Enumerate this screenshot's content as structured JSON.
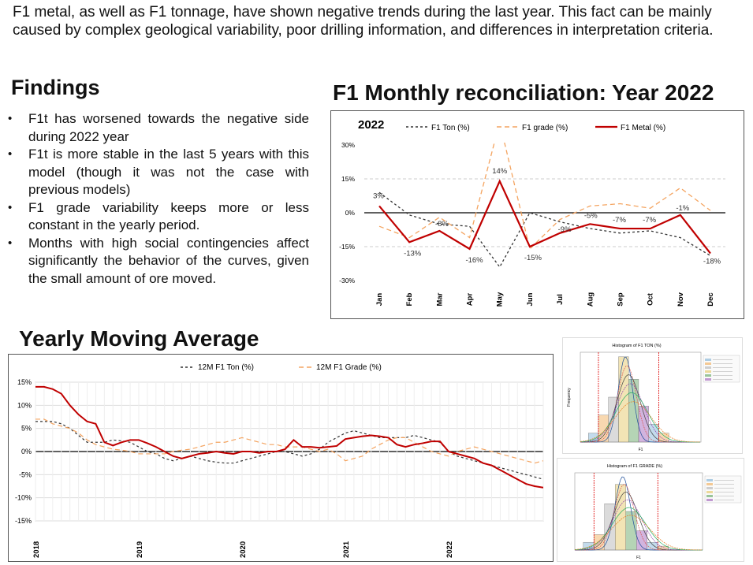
{
  "intro": "F1 metal, as well as F1 tonnage, have shown negative trends during the last year. This fact can be mainly caused by complex geological variability, poor drilling information, and differences in interpretation criteria.",
  "findings": {
    "title": "Findings",
    "items": [
      "F1t has worsened towards the negative side during 2022 year",
      "F1t is more stable in the last 5 years with this model (though it was not the case with previous models)",
      "F1 grade variability keeps more or less constant in the yearly period.",
      "Months with high social contingencies affect significantly the behavior of the curves, given the small amount of ore moved."
    ]
  },
  "chart_data": [
    {
      "type": "line",
      "title": "F1 Monthly reconciliation: Year 2022",
      "inner_label": "2022",
      "categories": [
        "Jan",
        "Feb",
        "Mar",
        "Apr",
        "May",
        "Jun",
        "Jul",
        "Aug",
        "Sep",
        "Oct",
        "Nov",
        "Dec"
      ],
      "ylim": [
        -30,
        30
      ],
      "yticks": [
        "30%",
        "15%",
        "0%",
        "-15%",
        "-30%"
      ],
      "grid": true,
      "legend_position": "top",
      "series": [
        {
          "name": "F1 Ton (%)",
          "style": "dashed",
          "color": "#333333",
          "values": [
            9,
            -1,
            -5,
            -6,
            -24,
            0,
            -4,
            -7,
            -9,
            -8,
            -11,
            -19
          ]
        },
        {
          "name": "F1 grade (%)",
          "style": "dashed",
          "color": "#f4a460",
          "values": [
            -6,
            -11,
            -2,
            -11,
            40,
            -16,
            -3,
            3,
            4,
            2,
            11,
            1
          ]
        },
        {
          "name": "F1 Metal (%)",
          "style": "solid",
          "color": "#c00000",
          "values": [
            3,
            -13,
            -8,
            -16,
            14,
            -15,
            -9,
            -5,
            -7,
            -7,
            -1,
            -18
          ]
        }
      ],
      "data_labels": [
        "3%",
        "-13%",
        "-8%",
        "-16%",
        "14%",
        "-15%",
        "-9%",
        "-5%",
        "-7%",
        "-7%",
        "-1%",
        "-18%"
      ]
    },
    {
      "type": "line",
      "title": "Yearly Moving Average",
      "ylim": [
        -15,
        15
      ],
      "yticks": [
        "15%",
        "10%",
        "5%",
        "0%",
        "-5%",
        "-10%",
        "-15%"
      ],
      "x_year_labels": [
        "2018",
        "2019",
        "2020",
        "2021",
        "2022"
      ],
      "grid": true,
      "legend_position": "top",
      "series": [
        {
          "name": "12M F1 Ton (%)",
          "style": "dashed",
          "color": "#333333",
          "values": [
            6.5,
            6.5,
            6.5,
            6,
            5,
            3.5,
            2,
            2,
            2,
            2.5,
            2.3,
            2,
            1,
            0,
            -0.5,
            -1.5,
            -2,
            -1.5,
            -1,
            -1.5,
            -2,
            -2.3,
            -2.5,
            -2.5,
            -2,
            -1.5,
            -1,
            -0.5,
            0,
            0,
            -0.5,
            -1,
            -0.5,
            0.5,
            2,
            3,
            4,
            4.5,
            4,
            3.5,
            3,
            3,
            3,
            3,
            3.5,
            3,
            2.5,
            2,
            0,
            -1,
            -1.5,
            -2,
            -2.5,
            -3,
            -3.5,
            -4,
            -4.5,
            -5,
            -5.5,
            -6
          ]
        },
        {
          "name": "12M F1 Grade (%)",
          "style": "dashed",
          "color": "#f4a460",
          "values": [
            7,
            7,
            6,
            5.5,
            5,
            4,
            2.5,
            1.5,
            1,
            0.5,
            0.3,
            0,
            -0.5,
            -0.5,
            -0.5,
            -0.5,
            0,
            0.3,
            0.5,
            1,
            1.5,
            2,
            2,
            2.5,
            3,
            2.5,
            2,
            1.5,
            1.5,
            1,
            1,
            1,
            0.5,
            0,
            0.5,
            -0.5,
            -2,
            -1.5,
            -1,
            0.5,
            1.5,
            2.5,
            3,
            3,
            2,
            1,
            0,
            -0.5,
            -1,
            0,
            0.5,
            1,
            0.5,
            0,
            -0.5,
            -1,
            -1.5,
            -2,
            -2.5,
            -2
          ]
        },
        {
          "name": "",
          "style": "solid",
          "color": "#c00000",
          "values": [
            14,
            14,
            13.5,
            12.5,
            10,
            8,
            6.5,
            6,
            2,
            1.3,
            2,
            2.5,
            2.5,
            1.8,
            1,
            0,
            -1,
            -1.5,
            -1,
            -0.5,
            -0.3,
            0,
            -0.3,
            -0.5,
            0,
            0,
            -0.3,
            0,
            0,
            0.5,
            2.5,
            1,
            1,
            0.8,
            1,
            1.2,
            2.7,
            3,
            3.3,
            3.5,
            3.3,
            3,
            1.5,
            1,
            1.5,
            1.8,
            2.2,
            2.2,
            0,
            -0.5,
            -1,
            -1.5,
            -2.5,
            -3,
            -4,
            -5,
            -6,
            -7,
            -7.5,
            -7.8
          ]
        }
      ]
    }
  ],
  "histograms": [
    {
      "title": "Histogram of F1 TON (%)",
      "ylabel": "Frequency",
      "xlabel": "F1"
    },
    {
      "title": "Histogram of F1 GRADE (%)",
      "xlabel": "F1"
    }
  ]
}
